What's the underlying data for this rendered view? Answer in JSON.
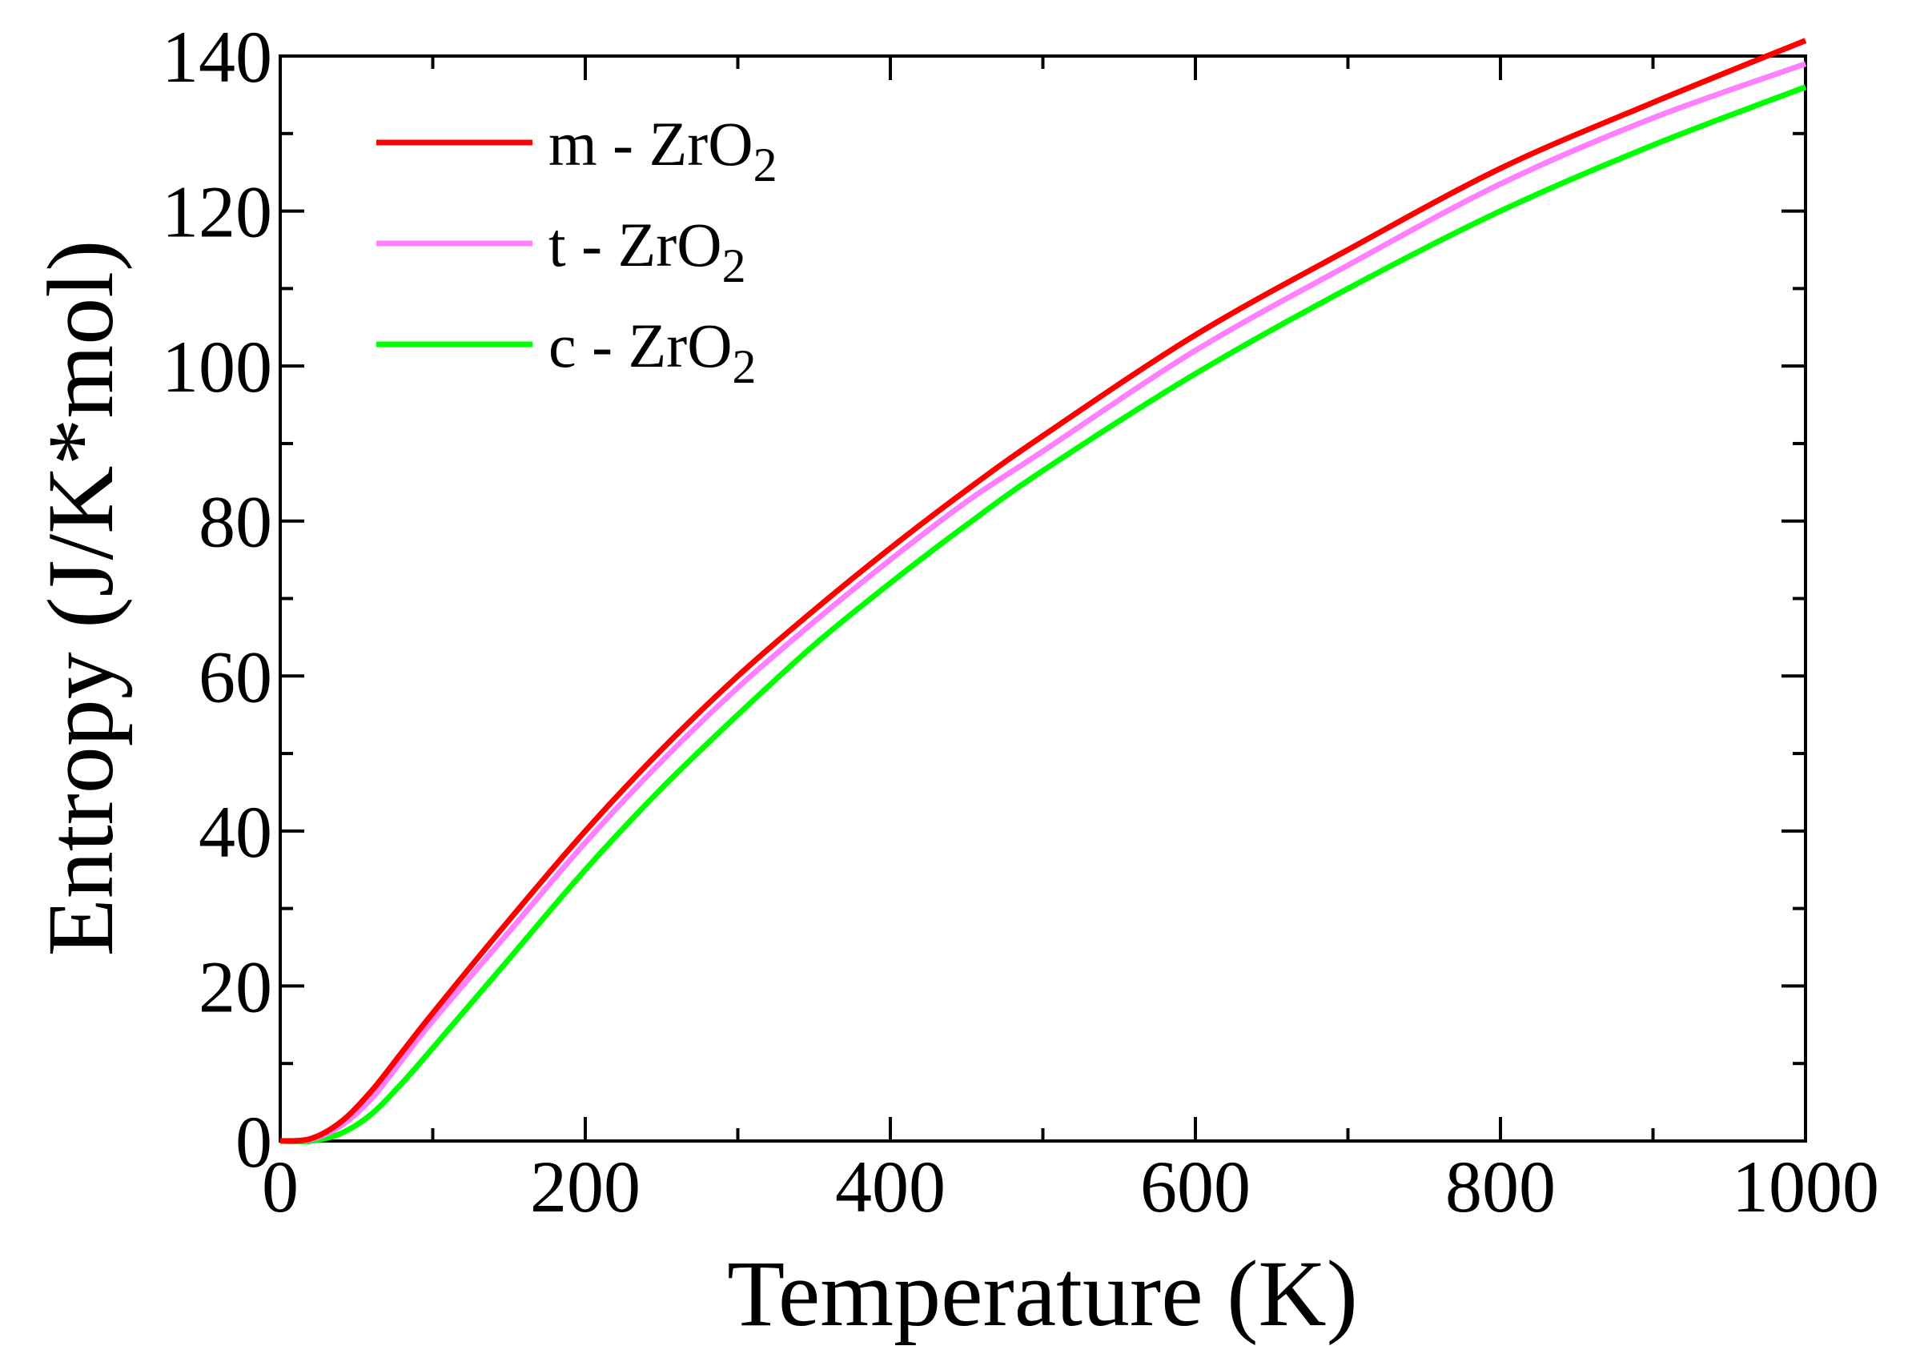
{
  "chart_data": {
    "type": "line",
    "title": "",
    "xlabel": "Temperature (K)",
    "ylabel": "Entropy (J/K*mol)",
    "xlim": [
      0,
      1000
    ],
    "ylim": [
      0,
      140
    ],
    "grid": false,
    "legend_position": "top-left",
    "x_ticks": [
      0,
      200,
      400,
      600,
      800,
      1000
    ],
    "x_tick_labels": [
      "0",
      "200",
      "400",
      "600",
      "800",
      "1000"
    ],
    "y_ticks": [
      0,
      20,
      40,
      60,
      80,
      100,
      120,
      140
    ],
    "y_tick_labels": [
      "0",
      "20",
      "40",
      "60",
      "80",
      "100",
      "120",
      "140"
    ],
    "x": [
      0,
      20,
      40,
      60,
      80,
      100,
      150,
      200,
      250,
      300,
      350,
      400,
      450,
      500,
      600,
      700,
      800,
      900,
      1000
    ],
    "series": [
      {
        "name": "m - ZrO2",
        "label_main": "m - ZrO",
        "label_sub": "2",
        "color": "#ff0000",
        "values": [
          0,
          0.3,
          2.5,
          6.5,
          11.5,
          16.5,
          28.5,
          40.0,
          50.5,
          60.0,
          68.5,
          76.5,
          84.0,
          91.0,
          104.0,
          115.0,
          125.5,
          134.0,
          142.0
        ]
      },
      {
        "name": "t - ZrO2",
        "label_main": "t  - ZrO",
        "label_sub": "2",
        "color": "#ff80ff",
        "values": [
          0,
          0.2,
          2.0,
          5.5,
          10.5,
          15.5,
          27.0,
          38.5,
          49.0,
          58.5,
          67.0,
          75.0,
          82.5,
          89.0,
          102.0,
          113.0,
          123.5,
          132.0,
          139.0
        ]
      },
      {
        "name": "c - ZrO2",
        "label_main": "c - ZrO",
        "label_sub": "2",
        "color": "#00ff00",
        "values": [
          0,
          0.0,
          1.0,
          3.5,
          7.5,
          12.0,
          23.5,
          35.0,
          45.5,
          55.0,
          64.0,
          72.0,
          79.5,
          86.5,
          99.0,
          110.0,
          120.0,
          128.5,
          136.0
        ]
      }
    ]
  }
}
